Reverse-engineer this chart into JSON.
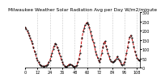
{
  "title": "Milwaukee Weather Solar Radiation Avg per Day W/m2/minute",
  "line_color": "#cc0000",
  "line_style": "--",
  "marker": ".",
  "marker_color": "#000000",
  "bg_color": "#ffffff",
  "ylim": [
    0,
    300
  ],
  "yticks": [
    0,
    50,
    100,
    150,
    200,
    250,
    300
  ],
  "ylabel_fontsize": 3.5,
  "title_fontsize": 4.2,
  "x_values": [
    0,
    1,
    2,
    3,
    4,
    5,
    6,
    7,
    8,
    9,
    10,
    11,
    12,
    13,
    14,
    15,
    16,
    17,
    18,
    19,
    20,
    21,
    22,
    23,
    24,
    25,
    26,
    27,
    28,
    29,
    30,
    31,
    32,
    33,
    34,
    35,
    36,
    37,
    38,
    39,
    40,
    41,
    42,
    43,
    44,
    45,
    46,
    47,
    48,
    49,
    50,
    51,
    52,
    53,
    54,
    55,
    56,
    57,
    58,
    59,
    60,
    61,
    62,
    63,
    64,
    65,
    66,
    67,
    68,
    69,
    70,
    71,
    72,
    73,
    74,
    75,
    76,
    77,
    78,
    79,
    80,
    81,
    82,
    83,
    84,
    85,
    86,
    87,
    88,
    89,
    90,
    91,
    92,
    93,
    94,
    95,
    96,
    97,
    98,
    99,
    100,
    101,
    102,
    103,
    104,
    105,
    106,
    107,
    108,
    109,
    110,
    111
  ],
  "y_values": [
    220,
    210,
    200,
    190,
    175,
    160,
    145,
    130,
    110,
    90,
    75,
    55,
    40,
    30,
    20,
    15,
    10,
    8,
    5,
    8,
    10,
    15,
    20,
    30,
    40,
    60,
    80,
    100,
    120,
    130,
    125,
    110,
    95,
    80,
    60,
    45,
    30,
    18,
    10,
    5,
    5,
    10,
    15,
    20,
    18,
    15,
    10,
    5,
    5,
    8,
    15,
    30,
    50,
    80,
    120,
    160,
    195,
    215,
    230,
    240,
    245,
    235,
    220,
    195,
    175,
    155,
    135,
    115,
    90,
    70,
    55,
    40,
    30,
    50,
    80,
    110,
    130,
    145,
    120,
    100,
    80,
    60,
    45,
    35,
    30,
    30,
    35,
    40,
    50,
    60,
    50,
    40,
    30,
    20,
    15,
    20,
    30,
    50,
    80,
    110,
    140,
    165,
    175,
    160,
    140,
    115,
    90,
    70,
    55,
    45,
    40,
    40
  ],
  "vline_positions": [
    12,
    24,
    36,
    48,
    60,
    72,
    84,
    96,
    108
  ],
  "vline_color": "#999999",
  "vline_style": ":"
}
